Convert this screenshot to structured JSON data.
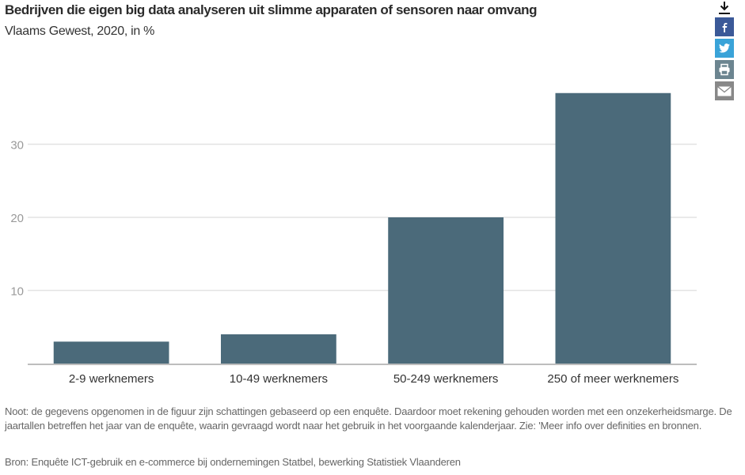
{
  "header": {
    "title": "Bedrijven die eigen big data analyseren uit slimme apparaten of sensoren naar omvang",
    "subtitle": "Vlaams Gewest, 2020, in %"
  },
  "share": {
    "download_icon": "download-icon",
    "items": [
      {
        "name": "facebook",
        "icon": "facebook-icon",
        "color": "#3b5998"
      },
      {
        "name": "twitter",
        "icon": "twitter-icon",
        "color": "#3aa3d8"
      },
      {
        "name": "print",
        "icon": "print-icon",
        "color": "#6c8590"
      },
      {
        "name": "email",
        "icon": "email-icon",
        "color": "#888888"
      }
    ]
  },
  "chart_data": {
    "type": "bar",
    "title": "Bedrijven die eigen big data analyseren uit slimme apparaten of sensoren naar omvang",
    "subtitle": "Vlaams Gewest, 2020, in %",
    "categories": [
      "2-9 werknemers",
      "10-49 werknemers",
      "50-249 werknemers",
      "250 of meer werknemers"
    ],
    "values": [
      3,
      4,
      20,
      37
    ],
    "xlabel": "",
    "ylabel": "",
    "ylim": [
      0,
      40
    ],
    "yticks": [
      10,
      20,
      30
    ],
    "ytick_labels": [
      "10",
      "20",
      "30"
    ],
    "grid": true,
    "legend": "none",
    "bar_color": "#4b6a7a"
  },
  "footer": {
    "note": "Noot: de gegevens opgenomen in de figuur zijn schattingen gebaseerd op een enquête. Daardoor moet rekening gehouden worden met een onzekerheidsmarge. De jaartallen betreffen het jaar van de enquête, waarin gevraagd wordt naar het gebruik in het voorgaande kalenderjaar. Zie: 'Meer info over definities en bronnen.",
    "source": "Bron: Enquête ICT-gebruik en e-commerce bij ondernemingen Statbel, bewerking Statistiek Vlaanderen"
  }
}
